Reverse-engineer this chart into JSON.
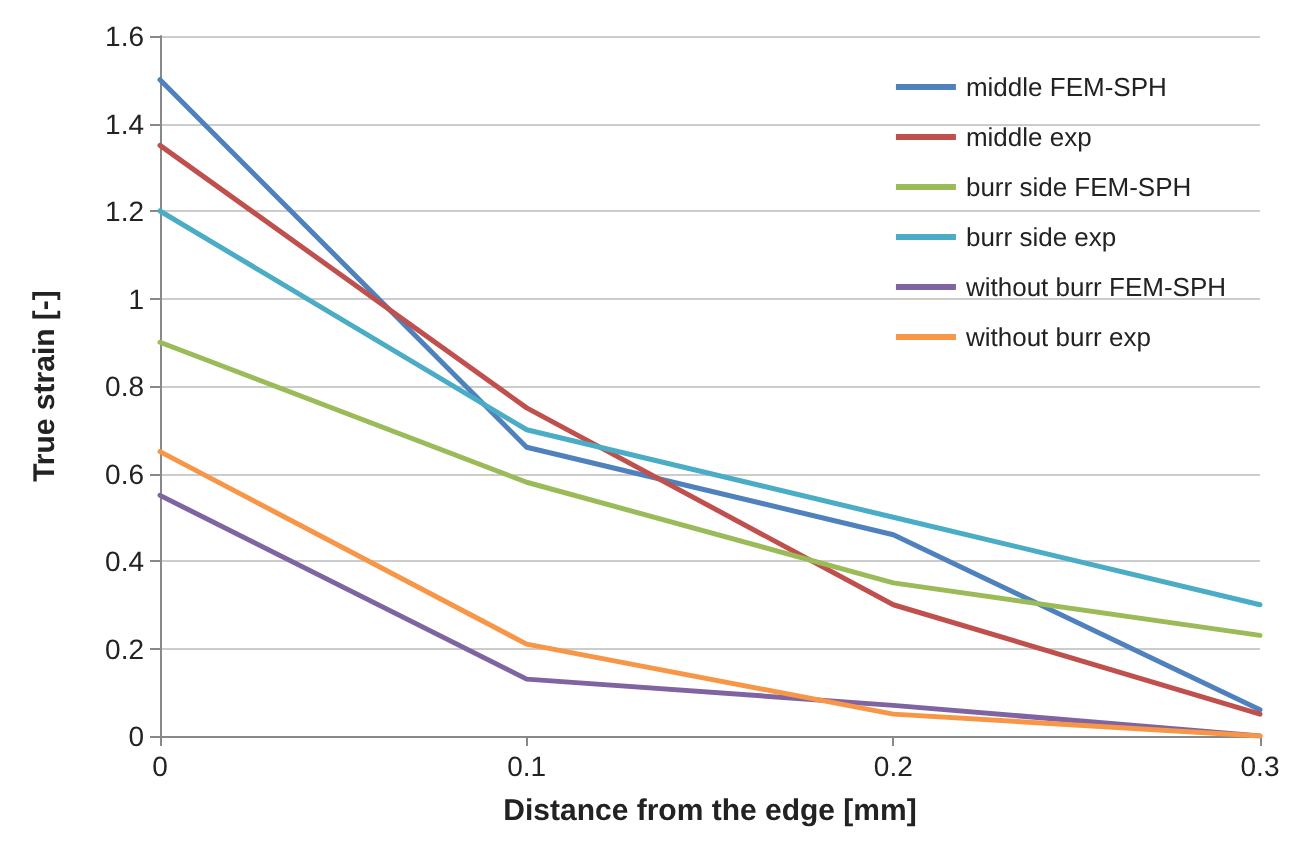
{
  "chart_data": {
    "type": "line",
    "xlabel": "Distance from the edge [mm]",
    "ylabel": "True strain [-]",
    "x": [
      0,
      0.1,
      0.2,
      0.3
    ],
    "series": [
      {
        "name": "middle FEM-SPH",
        "color": "#4f81bd",
        "values": [
          1.5,
          0.66,
          0.46,
          0.06
        ]
      },
      {
        "name": "middle exp",
        "color": "#c0504d",
        "values": [
          1.35,
          0.75,
          0.3,
          0.05
        ]
      },
      {
        "name": "burr side FEM-SPH",
        "color": "#9bbb59",
        "values": [
          0.9,
          0.58,
          0.35,
          0.23
        ]
      },
      {
        "name": "burr side exp",
        "color": "#4bacc6",
        "values": [
          1.2,
          0.7,
          0.5,
          0.3
        ]
      },
      {
        "name": "without burr FEM-SPH",
        "color": "#8064a2",
        "values": [
          0.55,
          0.13,
          0.07,
          0
        ]
      },
      {
        "name": "without burr exp",
        "color": "#f79646",
        "values": [
          0.65,
          0.21,
          0.05,
          0
        ]
      }
    ],
    "xlim": [
      0,
      0.3
    ],
    "xticks": [
      0,
      0.1,
      0.2,
      0.3
    ],
    "ylim": [
      0,
      1.6
    ],
    "yticks": [
      0,
      0.2,
      0.4,
      0.6,
      0.8,
      1,
      1.2,
      1.4,
      1.6
    ],
    "grid": "y",
    "legend": "top right",
    "marker": "none",
    "line_style": "solid"
  }
}
